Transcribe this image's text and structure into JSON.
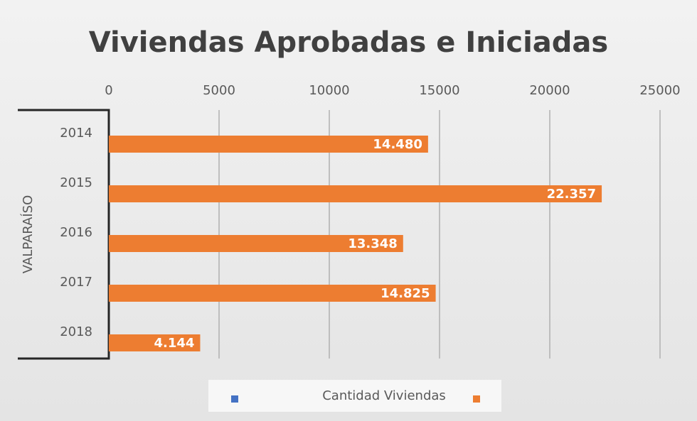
{
  "chart_data": {
    "type": "bar",
    "orientation": "horizontal",
    "title": "Viviendas Aprobadas e Iniciadas",
    "group_label": "VALPARAÍSO",
    "categories": [
      "2014",
      "2015",
      "2016",
      "2017",
      "2018"
    ],
    "series": [
      {
        "name": "Cantidad Viviendas",
        "color": "#ed7d31",
        "values": [
          14480,
          22357,
          13348,
          14825,
          4144
        ],
        "value_labels": [
          "14.480",
          "22.357",
          "13.348",
          "14.825",
          "4.144"
        ]
      }
    ],
    "xlim": [
      0,
      25000
    ],
    "xticks": [
      0,
      5000,
      10000,
      15000,
      20000,
      25000
    ],
    "grid": true
  }
}
